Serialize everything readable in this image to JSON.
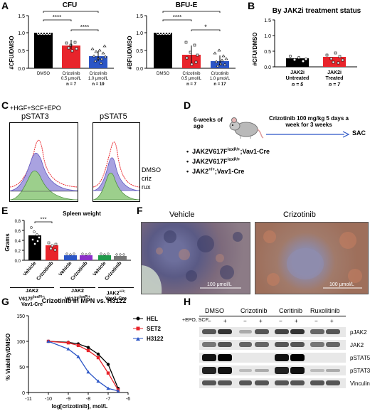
{
  "panels": {
    "A": "A",
    "B": "B",
    "C": "C",
    "D": "D",
    "E": "E",
    "F": "F",
    "G": "G",
    "H": "H"
  },
  "A": {
    "cfu_title": "CFU",
    "bfu_title": "BFU-E",
    "cfu_ylabel": "#CFU/DMSO",
    "bfu_ylabel": "#BFU/DMSO",
    "sig1": "****",
    "sig2": "****",
    "sig3": "****",
    "sig4": "****",
    "sig5": "****",
    "sig6": "*",
    "cat_dmso": "DMSO",
    "cat_c05": "Crizotinib",
    "cat_c05b": "0.5 μmol/L",
    "cat_c10": "Crizotinib",
    "cat_c10b": "1.0 μmol/L",
    "cfu_n1": "n = 7",
    "cfu_n2": "n = 19",
    "bfu_n1": "n = 7",
    "bfu_n2": "n = 17",
    "yt0": "0.0",
    "yt1": "0.5",
    "yt2": "1.0",
    "yt3": "1.5"
  },
  "B": {
    "title": "By JAK2i treatment status",
    "ylabel": "#CFU/DMSO",
    "cat1a": "JAK2i",
    "cat1b": "Untreated",
    "cat1n": "n = 5",
    "cat2a": "JAK2i",
    "cat2b": "Treated",
    "cat2n": "n = 7",
    "yt0": "0.0",
    "yt1": "0.5",
    "yt2": "1.0",
    "yt3": "1.5"
  },
  "C": {
    "cond": "+HGF+SCF+EPO",
    "h1": "pSTAT3",
    "h2": "pSTAT5",
    "l1": "DMSO",
    "l2": "criz",
    "l3": "rux"
  },
  "D": {
    "age": "6-weeks of age",
    "treat": "Crizotinib 100 mg/kg 5 days a week for 3 weeks",
    "sac": "SAC",
    "g1": "JAK2V617F",
    "g1s": "loxP/+",
    "g1t": ";Vav1-Cre",
    "g2": "JAK2V617F",
    "g2s": "loxP/+",
    "g3": "JAK2",
    "g3s": "+/+",
    "g3t": ";Vav1-Cre"
  },
  "E": {
    "title": "Spleen weight",
    "ylabel": "Grams",
    "sig": "***",
    "x": [
      "Vehicle",
      "Crizotinib",
      "Vehicle",
      "Crizotinib",
      "Vehicle",
      "Crizotinib"
    ],
    "grp1a": "JAK2",
    "grp1b": "V617F",
    "grp1c": "loxP/+;",
    "grp1d": "Vav1-Cre",
    "grp2a": "JAK2",
    "grp2b": "V617F",
    "grp2c": "loxP/+",
    "grp3a": "JAK2",
    "grp3b": "+/+;",
    "grp3c": "Vav1-Cre",
    "yt0": "0.0",
    "yt1": "0.2",
    "yt2": "0.4",
    "yt3": "0.6",
    "yt4": "0.8"
  },
  "F": {
    "t1": "Vehicle",
    "t2": "Crizotinib",
    "s1": "100 μmol/L",
    "s2": "100 μmol/L"
  },
  "G": {
    "title": "Crizotinib in MPN vs. H3122",
    "ylabel": "% Viability/DMSO",
    "xlabel": "log[crizotinib], mol/L",
    "legend": [
      "HEL",
      "SET2",
      "H3122"
    ],
    "xt": [
      "-11",
      "-10",
      "-9",
      "-8",
      "-7",
      "-6"
    ],
    "yt": [
      "0",
      "50",
      "100",
      "150"
    ]
  },
  "H": {
    "groups": [
      "DMSO",
      "Crizotinib",
      "Ceritinib",
      "Ruxolitinib"
    ],
    "cond": "+EPO, SCF:",
    "minus": "−",
    "plus": "+",
    "rows": [
      "pJAK2",
      "JAK2",
      "pSTAT5",
      "pSTAT3",
      "Vinculin"
    ]
  },
  "chart_data": [
    {
      "type": "bar",
      "title": "CFU",
      "ylabel": "#CFU/DMSO",
      "categories": [
        "DMSO",
        "Crizotinib 0.5 μmol/L",
        "Crizotinib 1.0 μmol/L"
      ],
      "values": [
        1.0,
        0.63,
        0.33
      ],
      "ylim": [
        0,
        1.5
      ],
      "colors": [
        "#000000",
        "#e8242b",
        "#2b55c6"
      ]
    },
    {
      "type": "bar",
      "title": "BFU-E",
      "ylabel": "#BFU/DMSO",
      "categories": [
        "DMSO",
        "Crizotinib 0.5 μmol/L",
        "Crizotinib 1.0 μmol/L"
      ],
      "values": [
        1.0,
        0.38,
        0.19
      ],
      "ylim": [
        0,
        1.5
      ],
      "colors": [
        "#000000",
        "#e8242b",
        "#2b55c6"
      ]
    },
    {
      "type": "bar",
      "title": "By JAK2i treatment status",
      "ylabel": "#CFU/DMSO",
      "categories": [
        "JAK2i Untreated",
        "JAK2i Treated"
      ],
      "values": [
        0.26,
        0.31
      ],
      "ylim": [
        0,
        1.5
      ]
    },
    {
      "type": "bar",
      "title": "Spleen weight",
      "ylabel": "Grams",
      "categories": [
        "Vehicle",
        "Crizotinib",
        "Vehicle",
        "Crizotinib",
        "Vehicle",
        "Crizotinib"
      ],
      "values": [
        0.5,
        0.3,
        0.1,
        0.1,
        0.1,
        0.09
      ],
      "ylim": [
        0,
        0.8
      ],
      "colors": [
        "#000000",
        "#e8242b",
        "#2b55c6",
        "#8b2fc9",
        "#1f9a4a",
        "#777777"
      ]
    },
    {
      "type": "line",
      "title": "Crizotinib in MPN vs. H3122",
      "xlabel": "log[crizotinib], mol/L",
      "ylabel": "% Viability/DMSO",
      "xlim": [
        -11,
        -6
      ],
      "ylim": [
        0,
        150
      ],
      "series": [
        {
          "name": "HEL",
          "color": "#000000",
          "x": [
            -10,
            -9,
            -8.5,
            -8,
            -7.5,
            -7,
            -6.5
          ],
          "y": [
            100,
            98,
            95,
            88,
            75,
            55,
            8
          ]
        },
        {
          "name": "SET2",
          "color": "#e8242b",
          "x": [
            -10,
            -9,
            -8.5,
            -8,
            -7.5,
            -7,
            -6.5
          ],
          "y": [
            100,
            97,
            92,
            82,
            68,
            38,
            5
          ]
        },
        {
          "name": "H3122",
          "color": "#2b55c6",
          "x": [
            -10,
            -9,
            -8.5,
            -8,
            -7.5,
            -7,
            -6.5
          ],
          "y": [
            100,
            85,
            70,
            40,
            22,
            8,
            3
          ]
        }
      ]
    }
  ]
}
